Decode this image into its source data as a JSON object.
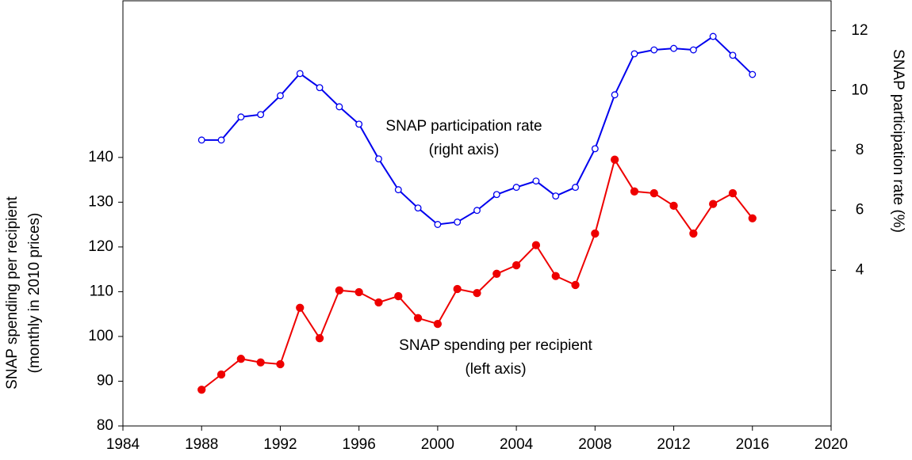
{
  "chart_data": {
    "type": "line",
    "ylabel": [
      "SNAP spending per recipient",
      "(monthly in 2010 prices)"
    ],
    "y2label": "SNAP participation rate (%)",
    "annotations": [
      [
        "SNAP participation rate",
        "(right axis)"
      ],
      [
        "SNAP spending per recipient",
        "(left axis)"
      ]
    ],
    "x": [
      1988,
      1989,
      1990,
      1991,
      1992,
      1993,
      1994,
      1995,
      1996,
      1997,
      1998,
      1999,
      2000,
      2001,
      2002,
      2003,
      2004,
      2005,
      2006,
      2007,
      2008,
      2009,
      2010,
      2011,
      2012,
      2013,
      2014,
      2015,
      2016
    ],
    "xlim": [
      1984,
      2020
    ],
    "xticks": [
      1984,
      1988,
      1992,
      1996,
      2000,
      2004,
      2008,
      2012,
      2016,
      2020
    ],
    "ylim": [
      80,
      175
    ],
    "yticks": [
      80,
      90,
      100,
      110,
      120,
      130,
      140
    ],
    "y2lim": [
      -1.2,
      13
    ],
    "y2ticks": [
      4,
      6,
      8,
      10,
      12
    ],
    "series": [
      {
        "color": "#0000ee",
        "axis": "y2",
        "marker": "open",
        "values": [
          8.35,
          8.35,
          9.12,
          9.2,
          9.83,
          10.57,
          10.1,
          9.46,
          8.88,
          7.72,
          6.69,
          6.08,
          5.53,
          5.61,
          6.0,
          6.53,
          6.77,
          6.98,
          6.48,
          6.77,
          8.06,
          9.86,
          11.23,
          11.36,
          11.41,
          11.36,
          11.81,
          11.18,
          10.54
        ]
      },
      {
        "color": "#ee0000",
        "axis": "y",
        "marker": "filled",
        "values": [
          88.1,
          91.5,
          95.0,
          94.2,
          93.8,
          106.4,
          99.6,
          110.3,
          109.9,
          107.6,
          109.0,
          104.1,
          102.8,
          110.6,
          109.7,
          114.0,
          115.9,
          120.4,
          113.5,
          111.5,
          123.0,
          139.5,
          132.4,
          132.0,
          129.2,
          123.0,
          129.6,
          132.0,
          126.4
        ]
      }
    ]
  }
}
